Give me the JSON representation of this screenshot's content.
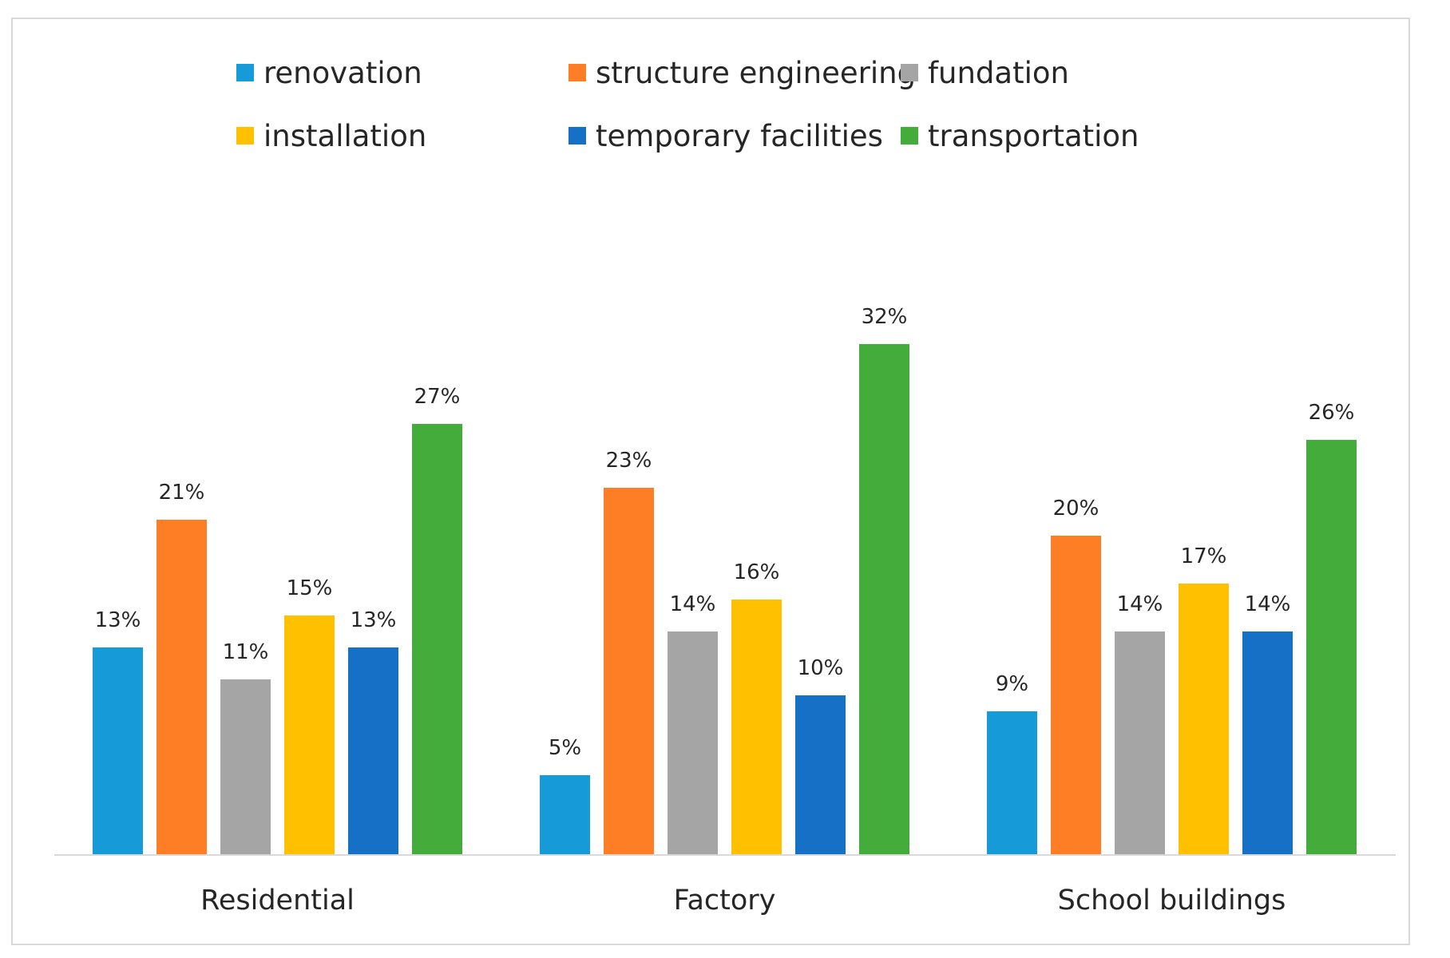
{
  "chart_data": {
    "type": "bar",
    "title": "",
    "xlabel": "",
    "ylabel": "",
    "ylim": [
      0,
      35
    ],
    "grid": false,
    "legend_position": "top",
    "categories": [
      "Residential",
      "Factory",
      "School buildings"
    ],
    "series": [
      {
        "name": "renovation",
        "color": "#169bd8",
        "values": [
          13,
          5,
          9
        ],
        "labels": [
          "13%",
          "5%",
          "9%"
        ]
      },
      {
        "name": "structure engineering",
        "color": "#fd7e25",
        "values": [
          21,
          23,
          20
        ],
        "labels": [
          "21%",
          "23%",
          "20%"
        ]
      },
      {
        "name": "fundation",
        "color": "#a5a5a5",
        "values": [
          11,
          14,
          14
        ],
        "labels": [
          "11%",
          "14%",
          "14%"
        ]
      },
      {
        "name": "installation",
        "color": "#ffc000",
        "values": [
          15,
          16,
          17
        ],
        "labels": [
          "15%",
          "16%",
          "17%"
        ]
      },
      {
        "name": "temporary facilities",
        "color": "#1570c6",
        "values": [
          13,
          10,
          14
        ],
        "labels": [
          "13%",
          "10%",
          "14%"
        ]
      },
      {
        "name": "transportation",
        "color": "#44ac3b",
        "values": [
          27,
          32,
          26
        ],
        "labels": [
          "27%",
          "32%",
          "26%"
        ]
      }
    ]
  }
}
